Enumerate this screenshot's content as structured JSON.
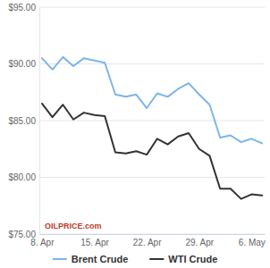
{
  "chart_data": {
    "type": "line",
    "categories": [
      "8. Apr",
      null,
      null,
      null,
      null,
      "15. Apr",
      null,
      null,
      null,
      null,
      "22. Apr",
      null,
      null,
      null,
      null,
      "29. Apr",
      null,
      null,
      null,
      null,
      "6. May",
      null
    ],
    "series": [
      {
        "name": "Brent Crude",
        "color": "#7cb5ec",
        "values": [
          90.5,
          89.5,
          90.6,
          89.8,
          90.5,
          90.3,
          90.1,
          87.3,
          87.1,
          87.3,
          86.1,
          87.4,
          87.1,
          87.8,
          88.3,
          87.3,
          86.4,
          83.5,
          83.7,
          83.1,
          83.4,
          83.0
        ]
      },
      {
        "name": "WTI Crude",
        "color": "#333333",
        "values": [
          86.5,
          85.3,
          86.4,
          85.1,
          85.7,
          85.5,
          85.4,
          82.2,
          82.1,
          82.3,
          82.0,
          83.4,
          82.9,
          83.6,
          83.9,
          82.5,
          81.9,
          79.0,
          79.0,
          78.1,
          78.5,
          78.4
        ]
      }
    ],
    "ylim": [
      75,
      95
    ],
    "yticks": [
      {
        "value": 75,
        "label": "$75.00"
      },
      {
        "value": 80,
        "label": "$80.00"
      },
      {
        "value": 85,
        "label": "$85.00"
      },
      {
        "value": 90,
        "label": "$90.00"
      },
      {
        "value": 95,
        "label": "$95.00"
      }
    ],
    "grid": true,
    "legend": "bottom",
    "annotations": [
      "OILPRICE.com"
    ]
  }
}
